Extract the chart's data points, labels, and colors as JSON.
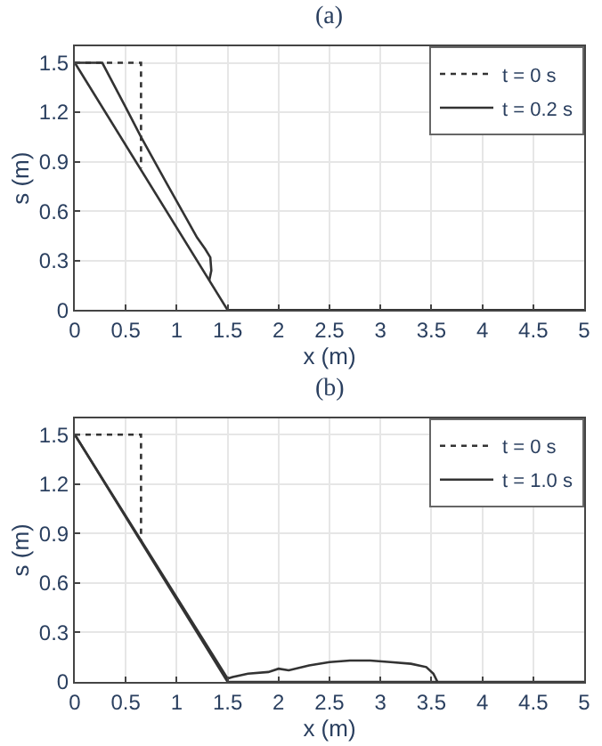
{
  "chart_data": [
    {
      "type": "line",
      "title": "(a)",
      "xlabel": "x (m)",
      "ylabel": "s (m)",
      "xlim": [
        0,
        5
      ],
      "ylim": [
        0,
        1.6
      ],
      "xticks": [
        0,
        0.5,
        1,
        1.5,
        2,
        2.5,
        3,
        3.5,
        4,
        4.5,
        5
      ],
      "yticks": [
        0,
        0.3,
        0.6,
        0.9,
        1.2,
        1.5
      ],
      "grid": true,
      "legend": "top right",
      "series": [
        {
          "name": "t = 0 s",
          "color": "#333333",
          "line_style": "dotted",
          "x": [
            0,
            0.65,
            0.65
          ],
          "values": [
            1.5,
            1.5,
            0.86
          ]
        },
        {
          "name": "t = 0.2 s",
          "color": "#333333",
          "line_style": "solid",
          "x": [
            0,
            0.27,
            0.5,
            0.65,
            0.9,
            1.1,
            1.2,
            1.28,
            1.33,
            1.34,
            1.32
          ],
          "values": [
            1.5,
            1.5,
            1.23,
            1.05,
            0.77,
            0.55,
            0.44,
            0.37,
            0.32,
            0.24,
            0.18
          ]
        },
        {
          "color": "#333333",
          "line_style": "solid",
          "x": [
            0,
            1.5,
            5
          ],
          "values": [
            1.5,
            0,
            0
          ]
        }
      ]
    },
    {
      "type": "line",
      "title": "(b)",
      "xlabel": "x (m)",
      "ylabel": "s (m)",
      "xlim": [
        0,
        5
      ],
      "ylim": [
        0,
        1.6
      ],
      "xticks": [
        0,
        0.5,
        1,
        1.5,
        2,
        2.5,
        3,
        3.5,
        4,
        4.5,
        5
      ],
      "yticks": [
        0,
        0.3,
        0.6,
        0.9,
        1.2,
        1.5
      ],
      "grid": true,
      "legend": "top right",
      "series": [
        {
          "name": "t = 0 s",
          "color": "#333333",
          "line_style": "dotted",
          "x": [
            0,
            0.65,
            0.65
          ],
          "values": [
            1.5,
            1.5,
            0.86
          ]
        },
        {
          "name": "t = 1.0 s",
          "color": "#333333",
          "line_style": "solid",
          "x": [
            0,
            1.5,
            1.55,
            1.7,
            1.9,
            2.0,
            2.1,
            2.3,
            2.5,
            2.7,
            2.9,
            3.1,
            3.3,
            3.45,
            3.52,
            3.56
          ],
          "values": [
            1.5,
            0.02,
            0.03,
            0.05,
            0.06,
            0.08,
            0.07,
            0.1,
            0.12,
            0.13,
            0.13,
            0.12,
            0.11,
            0.09,
            0.05,
            0
          ]
        },
        {
          "color": "#333333",
          "line_style": "solid",
          "x": [
            0,
            1.5,
            5
          ],
          "values": [
            1.5,
            0,
            0
          ]
        }
      ]
    }
  ]
}
